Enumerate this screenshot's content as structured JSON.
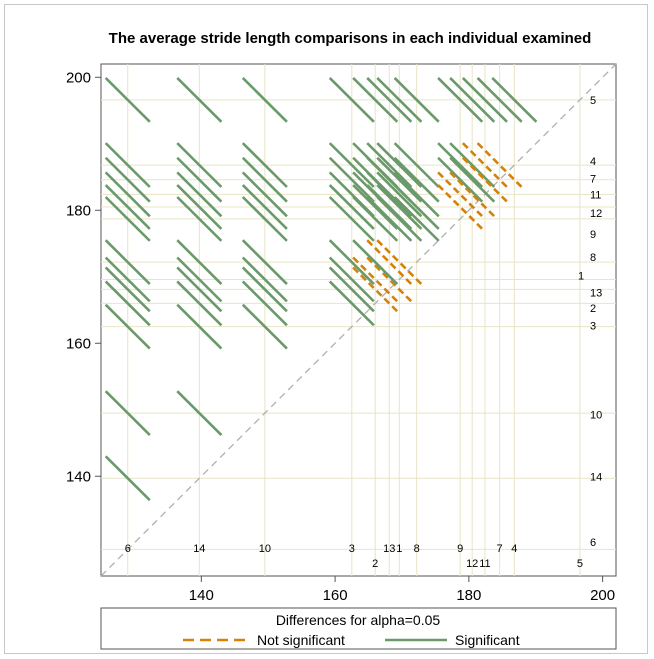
{
  "chart_data": {
    "type": "diffogram",
    "title": "The average stride length comparisons in each individual examined",
    "xlim": [
      125,
      202
    ],
    "ylim": [
      125,
      202
    ],
    "x_ticks": [
      140,
      160,
      180,
      200
    ],
    "y_ticks": [
      140,
      160,
      180,
      200
    ],
    "grid": true,
    "legend_title": "Differences for alpha=0.05",
    "legend_placement": "bottom",
    "series": [
      {
        "name": "Not significant",
        "color": "#d4820a",
        "dashed": true
      },
      {
        "name": "Significant",
        "color": "#6a9a6a",
        "dashed": false
      }
    ],
    "means": [
      {
        "id": "1",
        "value": 169.6
      },
      {
        "id": "2",
        "value": 166.0
      },
      {
        "id": "3",
        "value": 162.5
      },
      {
        "id": "4",
        "value": 186.8
      },
      {
        "id": "5",
        "value": 196.6
      },
      {
        "id": "6",
        "value": 129.0
      },
      {
        "id": "7",
        "value": 184.6
      },
      {
        "id": "8",
        "value": 172.2
      },
      {
        "id": "9",
        "value": 178.7
      },
      {
        "id": "10",
        "value": 149.5
      },
      {
        "id": "11",
        "value": 182.4
      },
      {
        "id": "12",
        "value": 180.5
      },
      {
        "id": "13",
        "value": 168.1
      },
      {
        "id": "14",
        "value": 139.7
      }
    ],
    "right_labels": [
      {
        "id": "5",
        "y": 196.6
      },
      {
        "id": "4",
        "y": 187.4
      },
      {
        "id": "7",
        "y": 184.8
      },
      {
        "id": "11",
        "y": 182.4
      },
      {
        "id": "12",
        "y": 179.6
      },
      {
        "id": "9",
        "y": 176.4
      },
      {
        "id": "8",
        "y": 173.0
      },
      {
        "id": "1",
        "y": 170.2
      },
      {
        "id": "13",
        "y": 167.6
      },
      {
        "id": "2",
        "y": 165.3
      },
      {
        "id": "3",
        "y": 162.7
      },
      {
        "id": "10",
        "y": 149.3
      },
      {
        "id": "14",
        "y": 140.0
      },
      {
        "id": "6",
        "y": 130.1
      }
    ],
    "bottom_labels": [
      {
        "id": "6",
        "x": 129.0,
        "row": 1
      },
      {
        "id": "14",
        "x": 139.7,
        "row": 1
      },
      {
        "id": "10",
        "x": 149.5,
        "row": 1
      },
      {
        "id": "3",
        "x": 162.5,
        "row": 1
      },
      {
        "id": "13",
        "x": 168.1,
        "row": 1
      },
      {
        "id": "1",
        "x": 169.6,
        "row": 1
      },
      {
        "id": "8",
        "x": 172.2,
        "row": 1
      },
      {
        "id": "9",
        "x": 178.7,
        "row": 1
      },
      {
        "id": "7",
        "x": 184.6,
        "row": 1
      },
      {
        "id": "4",
        "x": 186.8,
        "row": 1
      },
      {
        "id": "2",
        "x": 166.0,
        "row": 2
      },
      {
        "id": "12",
        "x": 180.5,
        "row": 2
      },
      {
        "id": "11",
        "x": 182.4,
        "row": 2
      },
      {
        "id": "5",
        "x": 196.6,
        "row": 2
      }
    ],
    "ns_pairs": [
      [
        "1",
        "2"
      ],
      [
        "1",
        "13"
      ],
      [
        "1",
        "8"
      ],
      [
        "2",
        "13"
      ],
      [
        "8",
        "13"
      ],
      [
        "4",
        "7"
      ],
      [
        "7",
        "11"
      ],
      [
        "11",
        "12"
      ],
      [
        "9",
        "12"
      ],
      [
        "4",
        "11"
      ],
      [
        "9",
        "11"
      ]
    ],
    "half_length": 3.3
  }
}
